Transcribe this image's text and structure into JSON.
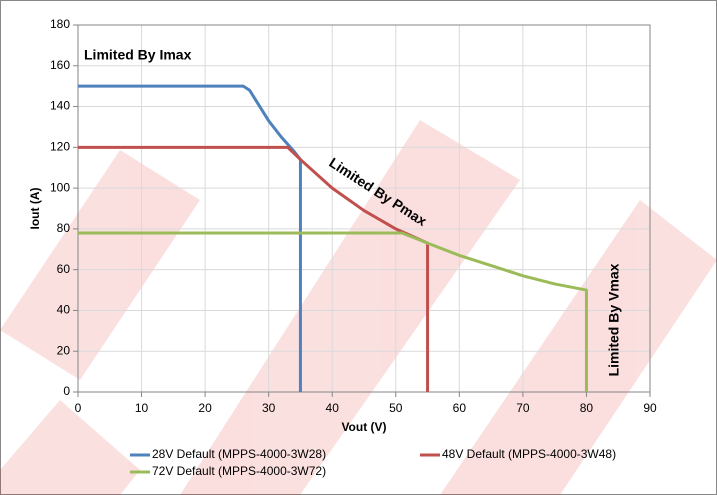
{
  "chart_data": {
    "type": "line",
    "xlabel": "Vout (V)",
    "ylabel": "Iout (A)",
    "xlim": [
      0,
      90
    ],
    "xticks": [
      0,
      10,
      20,
      30,
      40,
      50,
      60,
      70,
      80,
      90
    ],
    "ylim": [
      0,
      180
    ],
    "yticks": [
      0,
      20,
      40,
      60,
      80,
      100,
      120,
      140,
      160,
      180
    ],
    "grid": true,
    "annotations": [
      "Limited By Imax",
      "Limited By Pmax",
      "Limited By Vmax"
    ],
    "series": [
      {
        "name": "28V Default (MPPS-4000-3W28)",
        "color": "#4f81bd",
        "x": [
          0,
          26,
          27,
          28,
          30,
          32,
          34,
          35,
          35
        ],
        "values": [
          150,
          150,
          148,
          143,
          133,
          125,
          118,
          114,
          0
        ]
      },
      {
        "name": "48V Default (MPPS-4000-3W48)",
        "color": "#c0504d",
        "x": [
          0,
          33,
          35,
          40,
          45,
          50,
          55,
          55
        ],
        "values": [
          120,
          120,
          114,
          100,
          89,
          80,
          73,
          0
        ]
      },
      {
        "name": "72V Default (MPPS-4000-3W72)",
        "color": "#9bbb59",
        "x": [
          0,
          51,
          55,
          60,
          65,
          70,
          75,
          80,
          80
        ],
        "values": [
          78,
          78,
          73,
          67,
          62,
          57,
          53,
          50,
          0
        ]
      }
    ]
  }
}
